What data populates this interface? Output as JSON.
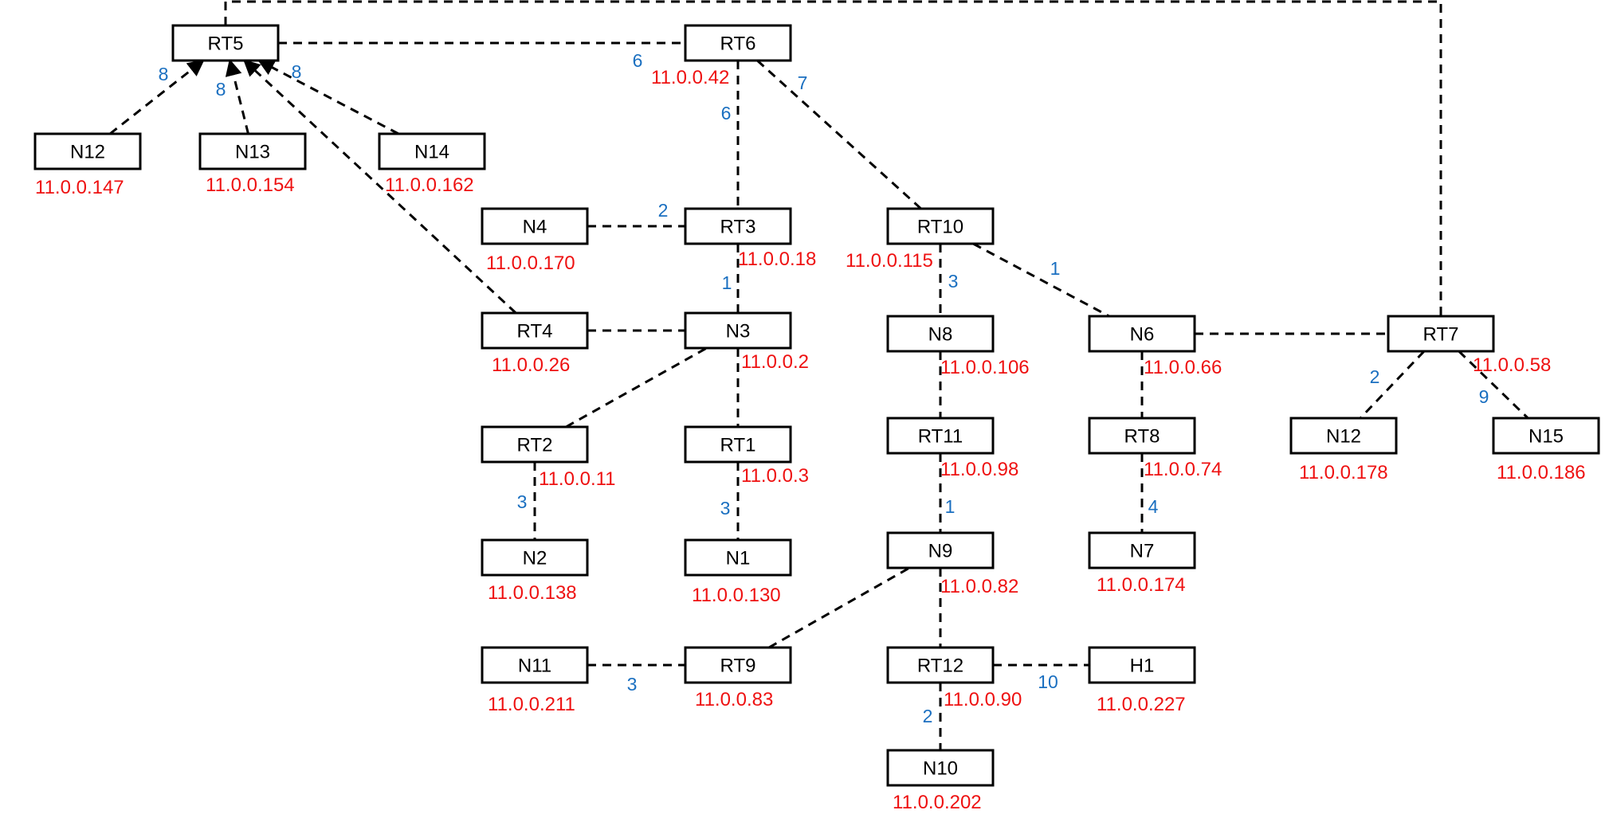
{
  "colors": {
    "ip": "#ee1111",
    "cost": "#1a6fc0",
    "line": "#000000"
  },
  "nodes": [
    {
      "id": "RT5",
      "label": "RT5"
    },
    {
      "id": "RT6",
      "label": "RT6",
      "ip": "11.0.0.42"
    },
    {
      "id": "N12a",
      "label": "N12",
      "ip": "11.0.0.147"
    },
    {
      "id": "N13",
      "label": "N13",
      "ip": "11.0.0.154"
    },
    {
      "id": "N14",
      "label": "N14",
      "ip": "11.0.0.162"
    },
    {
      "id": "N4",
      "label": "N4",
      "ip": "11.0.0.170"
    },
    {
      "id": "RT3",
      "label": "RT3",
      "ip": "11.0.0.18"
    },
    {
      "id": "RT10",
      "label": "RT10",
      "ip": "11.0.0.115"
    },
    {
      "id": "RT4",
      "label": "RT4",
      "ip": "11.0.0.26"
    },
    {
      "id": "N3",
      "label": "N3",
      "ip": "11.0.0.2"
    },
    {
      "id": "N8",
      "label": "N8",
      "ip": "11.0.0.106"
    },
    {
      "id": "N6",
      "label": "N6",
      "ip": "11.0.0.66"
    },
    {
      "id": "RT7",
      "label": "RT7",
      "ip": "11.0.0.58"
    },
    {
      "id": "RT2",
      "label": "RT2",
      "ip": "11.0.0.11"
    },
    {
      "id": "RT1",
      "label": "RT1",
      "ip": "11.0.0.3"
    },
    {
      "id": "RT11",
      "label": "RT11",
      "ip": "11.0.0.98"
    },
    {
      "id": "RT8",
      "label": "RT8",
      "ip": "11.0.0.74"
    },
    {
      "id": "N12b",
      "label": "N12",
      "ip": "11.0.0.178"
    },
    {
      "id": "N15",
      "label": "N15",
      "ip": "11.0.0.186"
    },
    {
      "id": "N2",
      "label": "N2",
      "ip": "11.0.0.138"
    },
    {
      "id": "N1",
      "label": "N1",
      "ip": "11.0.0.130"
    },
    {
      "id": "N9",
      "label": "N9",
      "ip": "11.0.0.82"
    },
    {
      "id": "N7",
      "label": "N7",
      "ip": "11.0.0.174"
    },
    {
      "id": "N11",
      "label": "N11",
      "ip": "11.0.0.211"
    },
    {
      "id": "RT9",
      "label": "RT9",
      "ip": "11.0.0.83"
    },
    {
      "id": "RT12",
      "label": "RT12",
      "ip": "11.0.0.90"
    },
    {
      "id": "H1",
      "label": "H1",
      "ip": "11.0.0.227"
    },
    {
      "id": "N10",
      "label": "N10",
      "ip": "11.0.0.202"
    }
  ],
  "links": [
    {
      "from": "RT5",
      "to": "RT6"
    },
    {
      "from": "RT5",
      "to": "RT7"
    },
    {
      "from": "N12a",
      "to": "RT5",
      "cost": "8",
      "arrow": true
    },
    {
      "from": "N13",
      "to": "RT5",
      "cost": "8",
      "arrow": true
    },
    {
      "from": "N14",
      "to": "RT5",
      "cost": "8",
      "arrow": true
    },
    {
      "from": "RT4",
      "to": "RT5",
      "arrow": true
    },
    {
      "from": "RT6",
      "to": "RT3",
      "cost": "6"
    },
    {
      "from": "RT6",
      "to": "RT10",
      "cost": "7"
    },
    {
      "from": "N4",
      "to": "RT3",
      "cost": "2"
    },
    {
      "from": "RT3",
      "to": "N3",
      "cost": "1"
    },
    {
      "from": "RT4",
      "to": "N3"
    },
    {
      "from": "RT2",
      "to": "N3"
    },
    {
      "from": "N3",
      "to": "RT1"
    },
    {
      "from": "RT10",
      "to": "N8",
      "cost": "3"
    },
    {
      "from": "RT10",
      "to": "N6",
      "cost": "1"
    },
    {
      "from": "N6",
      "to": "RT7"
    },
    {
      "from": "N6",
      "to": "RT8"
    },
    {
      "from": "RT7",
      "to": "N12b",
      "cost": "2"
    },
    {
      "from": "RT7",
      "to": "N15",
      "cost": "9"
    },
    {
      "from": "N8",
      "to": "RT11"
    },
    {
      "from": "RT11",
      "to": "N9",
      "cost": "1"
    },
    {
      "from": "RT8",
      "to": "N7",
      "cost": "4"
    },
    {
      "from": "RT2",
      "to": "N2",
      "cost": "3"
    },
    {
      "from": "RT1",
      "to": "N1",
      "cost": "3"
    },
    {
      "from": "RT9",
      "to": "N9"
    },
    {
      "from": "N9",
      "to": "RT12"
    },
    {
      "from": "N11",
      "to": "RT9",
      "cost": "3"
    },
    {
      "from": "RT12",
      "to": "H1",
      "cost": "10"
    },
    {
      "from": "RT12",
      "to": "N10",
      "cost": "2"
    }
  ],
  "extra_cost_labels": [
    {
      "near": "RT6",
      "cost": "6"
    }
  ]
}
